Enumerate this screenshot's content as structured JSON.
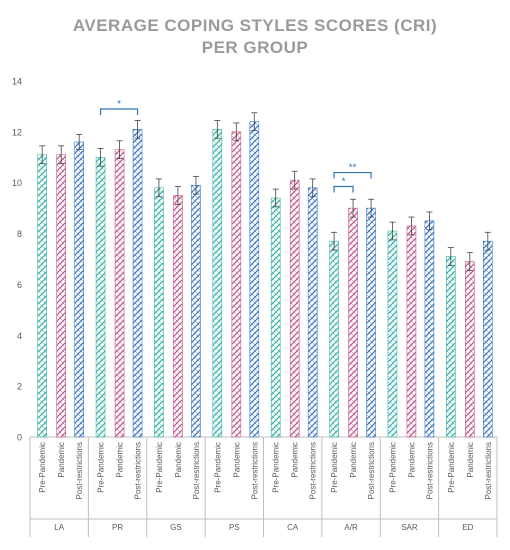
{
  "chart_data": {
    "type": "bar",
    "title_lines": [
      "AVERAGE COPING STYLES SCORES (CRI)",
      "PER GROUP"
    ],
    "xlabel": "",
    "ylabel": "",
    "ylim": [
      0,
      14
    ],
    "y_ticks": [
      0,
      2,
      4,
      6,
      8,
      10,
      12,
      14
    ],
    "grid": false,
    "legend": "none",
    "categories": [
      "LA",
      "PR",
      "GS",
      "PS",
      "CA",
      "A/R",
      "SAR",
      "ED"
    ],
    "subcategories": [
      "Pre-Pandemic",
      "Pandemic",
      "Post-restrictions"
    ],
    "series": [
      {
        "name": "Pre-Pandemic",
        "color": "#3bb3a6",
        "values": [
          11.1,
          11.0,
          9.8,
          12.1,
          9.4,
          7.7,
          8.1,
          7.1
        ],
        "errors": [
          0.35,
          0.35,
          0.35,
          0.35,
          0.35,
          0.35,
          0.35,
          0.35
        ]
      },
      {
        "name": "Pandemic",
        "color": "#c25a8c",
        "values": [
          11.1,
          11.3,
          9.5,
          12.0,
          10.1,
          9.0,
          8.3,
          6.9
        ],
        "errors": [
          0.35,
          0.35,
          0.35,
          0.35,
          0.35,
          0.35,
          0.35,
          0.35
        ]
      },
      {
        "name": "Post-restrictions",
        "color": "#3f78c6",
        "values": [
          11.6,
          12.1,
          9.9,
          12.4,
          9.8,
          9.0,
          8.5,
          7.7
        ],
        "errors": [
          0.3,
          0.35,
          0.35,
          0.35,
          0.35,
          0.35,
          0.35,
          0.35
        ]
      }
    ],
    "annotations": [
      {
        "label": "*",
        "category": "PR",
        "from": 0,
        "to": 2,
        "y": 12.9
      },
      {
        "label": "**",
        "category": "A/R",
        "from": 0,
        "to": 2,
        "y": 10.4
      },
      {
        "label": "*",
        "category": "A/R",
        "from": 0,
        "to": 1,
        "y": 9.85
      }
    ]
  },
  "colors": {
    "axis": "#bfbfbf",
    "annotation": "#2e75b6",
    "title": "#9a9a9a"
  }
}
